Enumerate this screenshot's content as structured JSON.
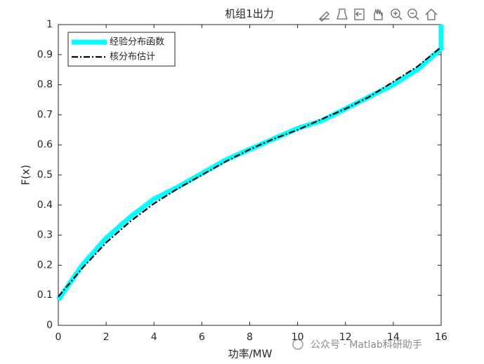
{
  "chart_data": {
    "type": "line",
    "title": "机组1出力",
    "x_label": "功率/MW",
    "y_label": "F(x)",
    "xlim": [
      0,
      16
    ],
    "xticks": [
      0,
      2,
      4,
      6,
      8,
      10,
      12,
      14,
      16
    ],
    "ylim": [
      0,
      1
    ],
    "yticks": [
      0,
      0.1,
      0.2,
      0.3,
      0.4,
      0.5,
      0.6,
      0.7,
      0.8,
      0.9,
      1
    ],
    "legend": "upper left",
    "series": [
      {
        "name": "经验分布函数",
        "color": "#00ffff",
        "x": [
          0,
          1,
          2,
          3,
          4,
          5,
          6,
          7,
          8,
          9,
          10,
          11,
          12,
          13,
          14,
          15,
          16,
          16
        ],
        "values": [
          0.085,
          0.2,
          0.29,
          0.36,
          0.42,
          0.46,
          0.505,
          0.55,
          0.585,
          0.62,
          0.655,
          0.68,
          0.72,
          0.76,
          0.8,
          0.85,
          0.92,
          1.0
        ]
      },
      {
        "name": "核分布估计",
        "color": "#000000",
        "x": [
          0,
          1,
          2,
          3,
          4,
          5,
          6,
          7,
          8,
          9,
          10,
          11,
          12,
          13,
          14,
          15,
          16
        ],
        "values": [
          0.095,
          0.19,
          0.275,
          0.345,
          0.405,
          0.455,
          0.5,
          0.545,
          0.585,
          0.62,
          0.65,
          0.685,
          0.72,
          0.76,
          0.81,
          0.86,
          0.925
        ]
      }
    ]
  },
  "watermark": "公众号 · Matlab科研助手"
}
